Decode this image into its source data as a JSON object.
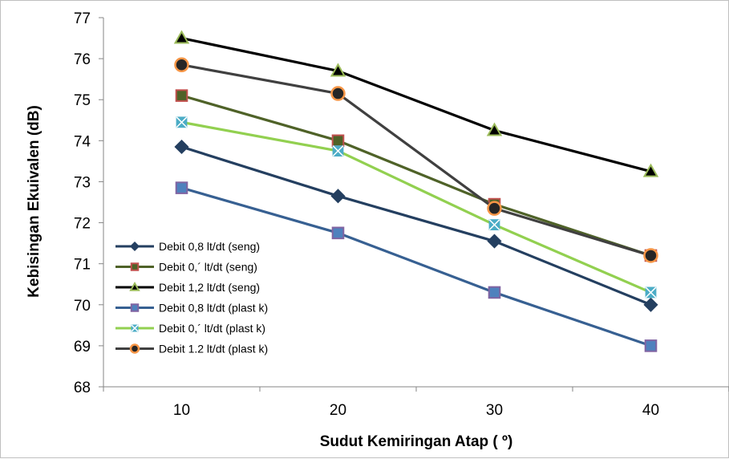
{
  "chart_data": {
    "type": "line",
    "title": "",
    "xlabel": "Sudut Kemiringan Atap ( º)",
    "ylabel": "Kebisingan Ekuivalen (dB)",
    "x": [
      10,
      20,
      30,
      40
    ],
    "x_tick_labels": [
      "10",
      "20",
      "30",
      "40"
    ],
    "ylim": [
      68,
      77
    ],
    "y_ticks": [
      68,
      69,
      70,
      71,
      72,
      73,
      74,
      75,
      76,
      77
    ],
    "grid": false,
    "legend_position": "bottom-left",
    "series": [
      {
        "name": "Debit 0,8 lt/dt (seng)",
        "color": "#243f60",
        "marker": "diamond",
        "values": [
          73.85,
          72.65,
          71.55,
          70.0
        ]
      },
      {
        "name": "Debit 0,´ lt/dt (seng)",
        "color": "#4f6228",
        "marker": "square",
        "marker_fill": "#4f6228",
        "marker_stroke": "#c0504d",
        "values": [
          75.1,
          74.0,
          72.45,
          71.2
        ]
      },
      {
        "name": "Debit 1,2 lt/dt (seng)",
        "color": "#000000",
        "marker": "triangle",
        "marker_fill": "#000000",
        "marker_stroke": "#9bbb59",
        "values": [
          76.5,
          75.7,
          74.25,
          73.25
        ]
      },
      {
        "name": "Debit 0,8 lt/dt (plast k)",
        "color": "#376092",
        "marker": "square",
        "marker_fill": "#4f81bd",
        "marker_stroke": "#8064a2",
        "values": [
          72.85,
          71.75,
          70.3,
          69.0
        ]
      },
      {
        "name": "Debit 0,´ lt/dt (plast k)",
        "color": "#92d050",
        "marker": "x",
        "marker_fill": "#4bacc6",
        "marker_stroke": "#4bacc6",
        "values": [
          74.45,
          73.75,
          71.95,
          70.3
        ]
      },
      {
        "name": "Debit 1.2 lt/dt (plast k)",
        "color": "#404040",
        "marker": "circle",
        "marker_fill": "#262626",
        "marker_stroke": "#f79646",
        "values": [
          75.85,
          75.15,
          72.35,
          71.2
        ]
      }
    ]
  }
}
